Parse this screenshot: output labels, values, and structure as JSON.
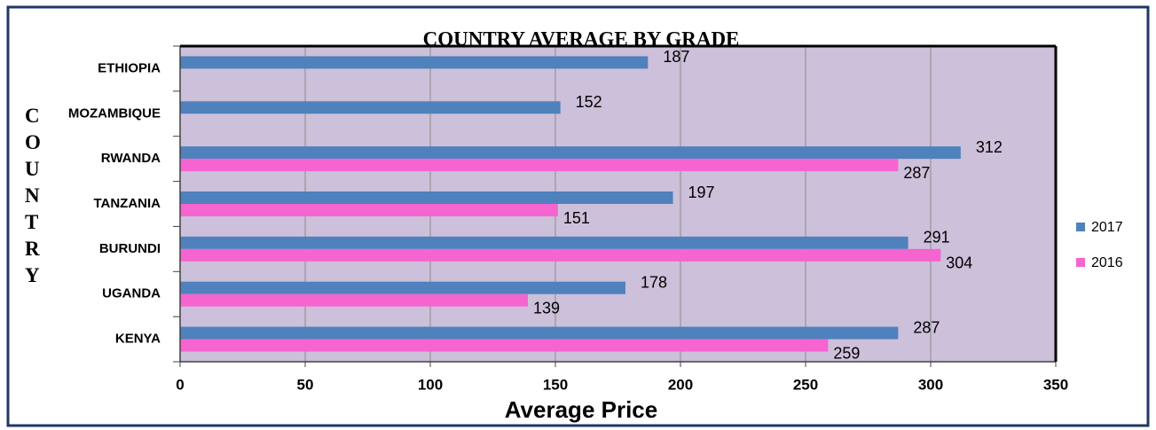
{
  "chart_data": {
    "type": "barh",
    "title": "COUNTRY AVERAGE BY GRADE",
    "x_label": "Average Price",
    "y_label": "COUNTRY",
    "categories": [
      "ETHIOPIA",
      "MOZAMBIQUE",
      "RWANDA",
      "TANZANIA",
      "BURUNDI",
      "UGANDA",
      "KENYA"
    ],
    "series": [
      {
        "name": "2017",
        "color": "#4f81bd",
        "values": [
          187,
          152,
          312,
          197,
          291,
          178,
          287
        ]
      },
      {
        "name": "2016",
        "color": "#f564cf",
        "values": [
          null,
          null,
          287,
          151,
          304,
          139,
          259
        ]
      }
    ],
    "xlim": [
      0,
      350
    ],
    "xticks": [
      0,
      50,
      100,
      150,
      200,
      250,
      300,
      350
    ],
    "grid": true,
    "legend": "right"
  }
}
